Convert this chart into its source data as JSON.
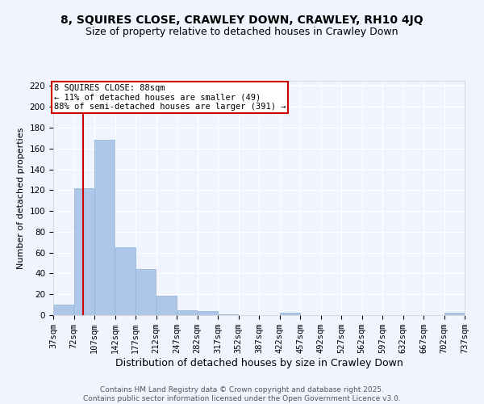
{
  "title1": "8, SQUIRES CLOSE, CRAWLEY DOWN, CRAWLEY, RH10 4JQ",
  "title2": "Size of property relative to detached houses in Crawley Down",
  "xlabel": "Distribution of detached houses by size in Crawley Down",
  "ylabel": "Number of detached properties",
  "bar_values": [
    10,
    122,
    168,
    65,
    44,
    19,
    5,
    4,
    1,
    0,
    0,
    2,
    0,
    0,
    0,
    0,
    0,
    0,
    0,
    2
  ],
  "bin_edges": [
    37,
    72,
    107,
    142,
    177,
    212,
    247,
    282,
    317,
    352,
    387,
    422,
    457,
    492,
    527,
    562,
    597,
    632,
    667,
    702,
    737
  ],
  "bar_color": "#aec6e8",
  "bar_edgecolor": "#90b0d8",
  "property_size": 88,
  "redline_color": "#cc0000",
  "annotation_text": "8 SQUIRES CLOSE: 88sqm\n← 11% of detached houses are smaller (49)\n88% of semi-detached houses are larger (391) →",
  "annotation_box_color": "#cc0000",
  "annotation_text_color": "#000000",
  "ylim": [
    0,
    225
  ],
  "yticks": [
    0,
    20,
    40,
    60,
    80,
    100,
    120,
    140,
    160,
    180,
    200,
    220
  ],
  "bg_color": "#f0f4ff",
  "grid_color": "#ffffff",
  "footnote": "Contains HM Land Registry data © Crown copyright and database right 2025.\nContains public sector information licensed under the Open Government Licence v3.0.",
  "title1_fontsize": 10,
  "title2_fontsize": 9,
  "xlabel_fontsize": 9,
  "ylabel_fontsize": 8,
  "tick_fontsize": 7.5,
  "footnote_fontsize": 6.5
}
